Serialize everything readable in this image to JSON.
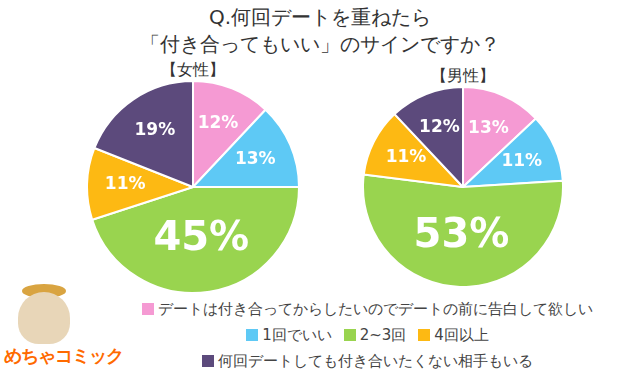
{
  "title": [
    "Q.何回デートを重ねたら",
    "「付き合ってもいい」のサインですか？"
  ],
  "logo": "めちゃコミック",
  "chart_data": [
    {
      "type": "pie",
      "title": "【女性】",
      "categories": [
        "デートは付き合ってからしたいのでデートの前に告白して欲しい",
        "1回でいい",
        "2~3回",
        "4回以上",
        "何回デートしても付き合いたくない相手もいる"
      ],
      "values": [
        12,
        13,
        45,
        11,
        19
      ],
      "value_labels": [
        "12%",
        "13%",
        "45%",
        "11%",
        "19%"
      ],
      "colors": [
        "#f59ad3",
        "#5ec9f5",
        "#99d44f",
        "#fdb913",
        "#5c4a7c"
      ],
      "data_labels": true,
      "legend": "bottom"
    },
    {
      "type": "pie",
      "title": "【男性】",
      "categories": [
        "デートは付き合ってからしたいのでデートの前に告白して欲しい",
        "1回でいい",
        "2~3回",
        "4回以上",
        "何回デートしても付き合いたくない相手もいる"
      ],
      "values": [
        13,
        11,
        53,
        11,
        12
      ],
      "value_labels": [
        "13%",
        "11%",
        "53%",
        "11%",
        "12%"
      ],
      "colors": [
        "#f59ad3",
        "#5ec9f5",
        "#99d44f",
        "#fdb913",
        "#5c4a7c"
      ],
      "data_labels": true,
      "legend": "bottom"
    }
  ]
}
